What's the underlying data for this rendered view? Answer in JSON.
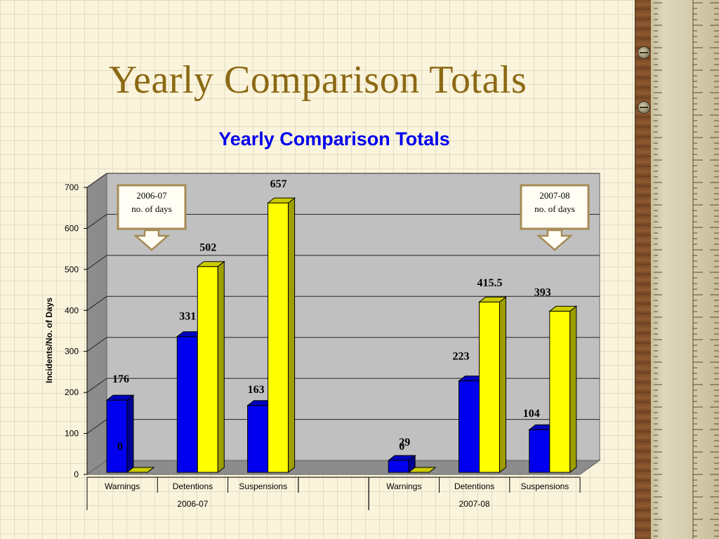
{
  "slide": {
    "title": "Yearly Comparison Totals"
  },
  "decoration": {
    "ruler_icon": "ruler-icon",
    "screw_icon": "screw-icon"
  },
  "chart_data": {
    "type": "bar",
    "title": "Yearly Comparison Totals",
    "title_color": "#0000ee",
    "ylabel": "Incidents/No. of Days",
    "xlabel": "",
    "ylim": [
      0,
      700
    ],
    "yticks": [
      0,
      100,
      200,
      300,
      400,
      500,
      600,
      700
    ],
    "grid": true,
    "groups": [
      {
        "label": "2006-07",
        "categories": [
          "Warnings",
          "Detentions",
          "Suspensions"
        ],
        "incidents": [
          176,
          331,
          163
        ],
        "days": [
          0,
          502,
          657
        ]
      },
      {
        "label": "2007-08",
        "categories": [
          "Warnings",
          "Detentions",
          "Suspensions"
        ],
        "incidents": [
          29,
          223,
          104
        ],
        "days": [
          0,
          415.5,
          393
        ]
      }
    ],
    "data_labels": [
      [
        "176",
        "0",
        "331",
        "502",
        "163",
        "657"
      ],
      [
        "29",
        "0",
        "223",
        "415.5",
        "104",
        "393"
      ]
    ],
    "colors": {
      "incidents": "#0000ee",
      "days": "#ffff00"
    },
    "annotations": [
      {
        "line1": "2006-07",
        "line2": "no. of days"
      },
      {
        "line1": "2007-08",
        "line2": "no. of days"
      }
    ]
  }
}
